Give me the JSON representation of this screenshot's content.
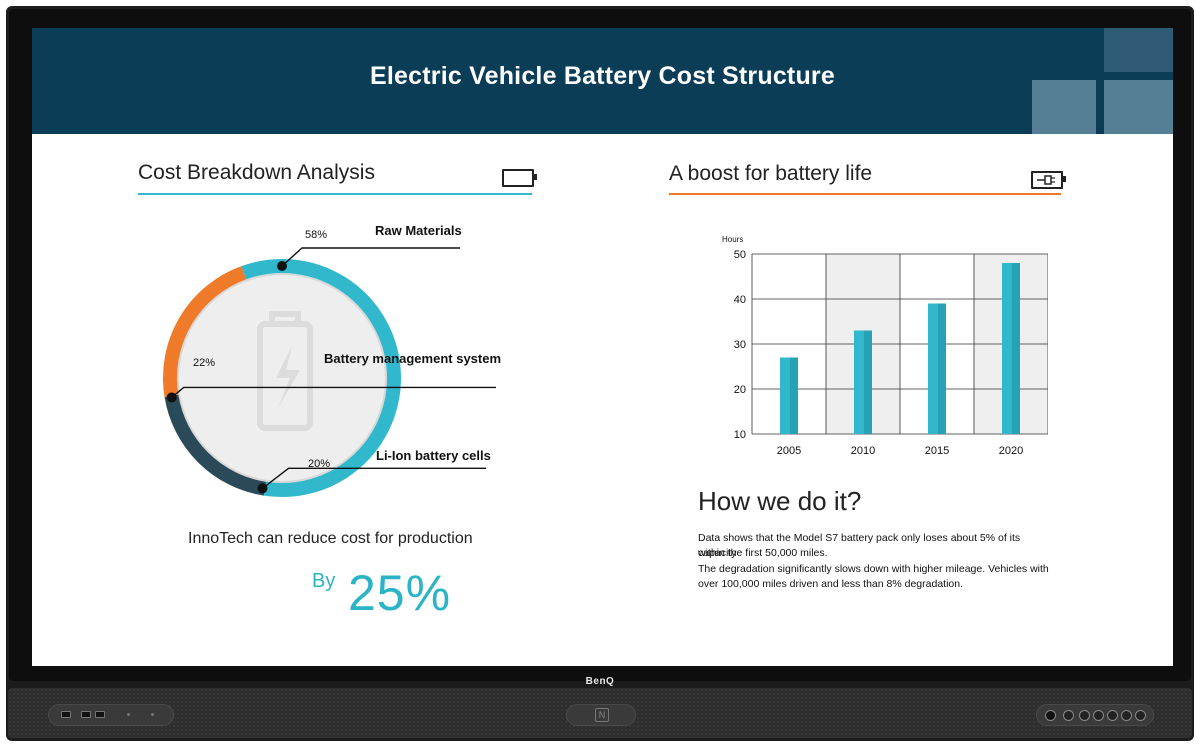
{
  "device": {
    "brand": "BenQ"
  },
  "header": {
    "title": "Electric Vehicle Battery Cost Structure"
  },
  "left": {
    "section_title": "Cost Breakdown Analysis",
    "icon": "battery-outline-icon",
    "segments": [
      {
        "label": "Raw Materials",
        "percent_label": "58%",
        "value": 58,
        "color": "#32b8cc"
      },
      {
        "label": "Battery management system",
        "percent_label": "22%",
        "value": 22,
        "color": "#ef7a2a"
      },
      {
        "label": "Li-Ion battery cells",
        "percent_label": "20%",
        "value": 20,
        "color": "#2a4a5a"
      }
    ],
    "reduce_text": "InnoTech can reduce cost for production",
    "by_text": "By",
    "reduce_value": "25%"
  },
  "right": {
    "section_title": "A boost for battery life",
    "icon": "battery-charging-icon",
    "how_title": "How we do it?",
    "paragraph_lines": [
      "Data shows that the Model S7 battery pack only loses about 5% of its capacity",
      "within the first 50,000 miles.",
      "The degradation significantly slows down with higher mileage. Vehicles with",
      "over 100,000 miles driven and less than 8% degradation."
    ]
  },
  "colors": {
    "header_bg": "#0b3d57",
    "accent_teal": "#32b8cc",
    "accent_orange": "#ef7a2a"
  },
  "chart_data": {
    "type": "bar",
    "categories": [
      "2005",
      "2010",
      "2015",
      "2020"
    ],
    "values": [
      27,
      33,
      39,
      48
    ],
    "ylabel": "Hours",
    "ylim": [
      10,
      50
    ],
    "yticks": [
      10,
      20,
      30,
      40,
      50
    ],
    "grid": true,
    "bar_color": "#32b8cc"
  }
}
